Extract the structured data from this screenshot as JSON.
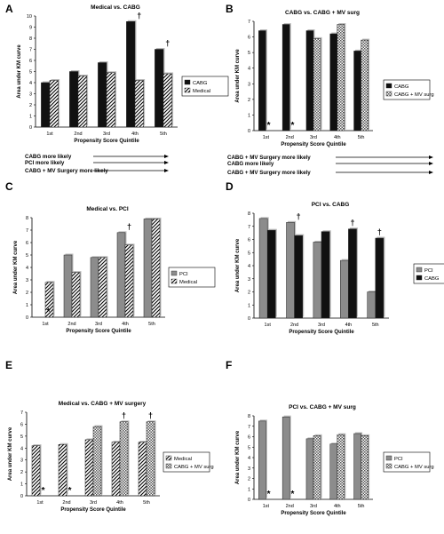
{
  "figure": {
    "charts": [
      {
        "id": "A",
        "title": "Medical vs. CABG",
        "ylabel": "Area under KM curve",
        "xlabel": "Propensity Score Quintile",
        "direction": "CABG more likely",
        "legend_position": "right",
        "colors": [
          "#111111",
          "hatch-diag"
        ]
      },
      {
        "id": "B",
        "title": "CABG vs. CABG + MV surg",
        "ylabel": "Area under KM curve",
        "xlabel": "Propensity Score Quintile",
        "direction": "CABG + MV Surgery more likely",
        "legend_position": "right",
        "colors": [
          "#111111",
          "hatch-check"
        ]
      },
      {
        "id": "C",
        "title": "Medical vs. PCI",
        "ylabel": "Area under KM curve",
        "xlabel": "Propensity Score Quintile",
        "direction": "PCI more likely",
        "legend_position": "right",
        "colors": [
          "#8c8c8c",
          "hatch-diag"
        ]
      },
      {
        "id": "D",
        "title": "PCI vs. CABG",
        "ylabel": "Area under KM curve",
        "xlabel": "Propensity Score Quintile",
        "direction": "CABG more likely",
        "legend_position": "right",
        "colors": [
          "#8c8c8c",
          "#111111"
        ]
      },
      {
        "id": "E",
        "title": "Medical vs. CABG + MV surgery",
        "ylabel": "Area under KM curve",
        "xlabel": "Propensity Score Quintile",
        "direction": "CABG + MV Surgery more likely",
        "legend_position": "right",
        "colors": [
          "hatch-diag",
          "hatch-check"
        ]
      },
      {
        "id": "F",
        "title": "PCI vs. CABG + MV surg",
        "ylabel": "Area under KM curve",
        "xlabel": "Propensity Score Quintile",
        "direction": "CABG + MV Surgery more likely",
        "legend_position": "right",
        "colors": [
          "#8c8c8c",
          "hatch-check"
        ]
      }
    ]
  },
  "chart_data": [
    {
      "type": "bar",
      "panel": "A",
      "title": "Medical vs. CABG",
      "categories": [
        "1st",
        "2nd",
        "3rd",
        "4th",
        "5th"
      ],
      "series": [
        {
          "name": "CABG",
          "values": [
            4.0,
            5.0,
            5.8,
            9.5,
            7.0
          ]
        },
        {
          "name": "Medical",
          "values": [
            4.2,
            4.6,
            4.9,
            4.2,
            4.8
          ]
        }
      ],
      "xlabel": "Propensity Score Quintile",
      "ylabel": "Area under KM curve",
      "ylim": [
        0,
        10
      ],
      "yticks": [
        0,
        1,
        2,
        3,
        4,
        5,
        6,
        7,
        8,
        9,
        10
      ],
      "markers": [
        {
          "category": "4th",
          "symbol": "†"
        },
        {
          "category": "5th",
          "symbol": "†"
        }
      ],
      "grid": false,
      "legend": "right"
    },
    {
      "type": "bar",
      "panel": "B",
      "title": "CABG vs. CABG + MV surg",
      "categories": [
        "1st",
        "2nd",
        "3rd",
        "4th",
        "5th"
      ],
      "series": [
        {
          "name": "CABG",
          "values": [
            6.4,
            6.8,
            6.4,
            6.2,
            5.1
          ]
        },
        {
          "name": "CABG + MV surg",
          "values": [
            0,
            0,
            5.9,
            6.8,
            5.8
          ]
        }
      ],
      "xlabel": "Propensity Score Quintile",
      "ylabel": "Area under KM curve",
      "ylim": [
        0,
        7
      ],
      "yticks": [
        0,
        1,
        2,
        3,
        4,
        5,
        6,
        7
      ],
      "markers": [
        {
          "category": "1st",
          "symbol": "*"
        },
        {
          "category": "2nd",
          "symbol": "*"
        }
      ],
      "grid": false,
      "legend": "right"
    },
    {
      "type": "bar",
      "panel": "C",
      "title": "Medical vs. PCI",
      "categories": [
        "1st",
        "2nd",
        "3rd",
        "4th",
        "5th"
      ],
      "series": [
        {
          "name": "PCI",
          "values": [
            0,
            5.0,
            4.8,
            6.8,
            7.9
          ]
        },
        {
          "name": "Medical",
          "values": [
            2.8,
            3.6,
            4.8,
            5.8,
            7.9
          ]
        }
      ],
      "xlabel": "Propensity Score Quintile",
      "ylabel": "Area under KM curve",
      "ylim": [
        0,
        8
      ],
      "yticks": [
        0,
        1,
        2,
        3,
        4,
        5,
        6,
        7,
        8
      ],
      "markers": [
        {
          "category": "1st",
          "symbol": "*"
        },
        {
          "category": "4th",
          "symbol": "†"
        }
      ],
      "grid": false,
      "legend": "right"
    },
    {
      "type": "bar",
      "panel": "D",
      "title": "PCI vs. CABG",
      "categories": [
        "1st",
        "2nd",
        "3rd",
        "4th",
        "5th"
      ],
      "series": [
        {
          "name": "PCI",
          "values": [
            7.6,
            7.3,
            5.8,
            4.4,
            2.0
          ]
        },
        {
          "name": "CABG",
          "values": [
            6.7,
            6.3,
            6.6,
            6.8,
            6.1
          ]
        }
      ],
      "xlabel": "Propensity Score Quintile",
      "ylabel": "Area under KM curve",
      "ylim": [
        0,
        8
      ],
      "yticks": [
        0,
        1,
        2,
        3,
        4,
        5,
        6,
        7,
        8
      ],
      "markers": [
        {
          "category": "2nd",
          "symbol": "†"
        },
        {
          "category": "4th",
          "symbol": "†"
        },
        {
          "category": "5th",
          "symbol": "†"
        }
      ],
      "grid": false,
      "legend": "right"
    },
    {
      "type": "bar",
      "panel": "E",
      "title": "Medical vs. CABG + MV surgery",
      "categories": [
        "1st",
        "2nd",
        "3rd",
        "4th",
        "5th"
      ],
      "series": [
        {
          "name": "Medical",
          "values": [
            4.2,
            4.3,
            4.7,
            4.5,
            4.5
          ]
        },
        {
          "name": "CABG + MV surg",
          "values": [
            0,
            0,
            5.8,
            6.2,
            6.2
          ]
        }
      ],
      "xlabel": "Propensity Score Quintile",
      "ylabel": "Area under KM curve",
      "ylim": [
        0,
        7
      ],
      "yticks": [
        0,
        1,
        2,
        3,
        4,
        5,
        6,
        7
      ],
      "markers": [
        {
          "category": "1st",
          "symbol": "*"
        },
        {
          "category": "2nd",
          "symbol": "*"
        },
        {
          "category": "4th",
          "symbol": "†"
        },
        {
          "category": "5th",
          "symbol": "†"
        }
      ],
      "grid": false,
      "legend": "right"
    },
    {
      "type": "bar",
      "panel": "F",
      "title": "PCI vs. CABG + MV surg",
      "categories": [
        "1st",
        "2nd",
        "3rd",
        "4th",
        "5th"
      ],
      "series": [
        {
          "name": "PCI",
          "values": [
            7.5,
            7.9,
            5.8,
            5.3,
            6.3
          ]
        },
        {
          "name": "CABG + MV surg",
          "values": [
            0,
            0,
            6.1,
            6.2,
            6.1
          ]
        }
      ],
      "xlabel": "Propensity Score Quintile",
      "ylabel": "Area under KM curve",
      "ylim": [
        0,
        8
      ],
      "yticks": [
        0,
        1,
        2,
        3,
        4,
        5,
        6,
        7,
        8
      ],
      "markers": [
        {
          "category": "1st",
          "symbol": "*"
        },
        {
          "category": "2nd",
          "symbol": "*"
        }
      ],
      "grid": false,
      "legend": "right"
    }
  ]
}
